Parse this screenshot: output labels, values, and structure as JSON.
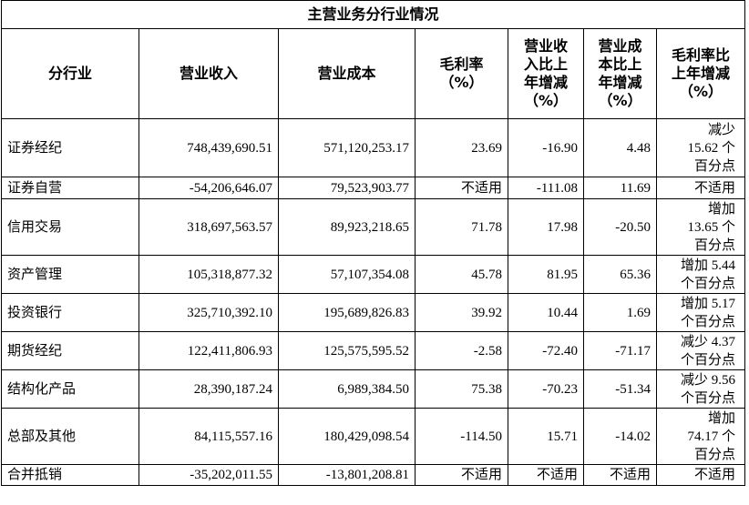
{
  "table": {
    "title": "主营业务分行业情况",
    "header": [
      "分行业",
      "营业收入",
      "营业成本",
      "毛利率（%）",
      "营业收入比上年增减（%）",
      "营业成本比上年增减（%）",
      "毛利率比上年增减（%）"
    ],
    "rows": [
      [
        "证券经纪",
        "748,439,690.51",
        "571,120,253.17",
        "23.69",
        "-16.90",
        "4.48",
        "减少 15.62 个百分点"
      ],
      [
        "证券自营",
        "-54,206,646.07",
        "79,523,903.77",
        "不适用",
        "-111.08",
        "11.69",
        "不适用"
      ],
      [
        "信用交易",
        "318,697,563.57",
        "89,923,218.65",
        "71.78",
        "17.98",
        "-20.50",
        "增加 13.65 个百分点"
      ],
      [
        "资产管理",
        "105,318,877.32",
        "57,107,354.08",
        "45.78",
        "81.95",
        "65.36",
        "增加 5.44 个百分点"
      ],
      [
        "投资银行",
        "325,710,392.10",
        "195,689,826.83",
        "39.92",
        "10.44",
        "1.69",
        "增加 5.17 个百分点"
      ],
      [
        "期货经纪",
        "122,411,806.93",
        "125,575,595.52",
        "-2.58",
        "-72.40",
        "-71.17",
        "减少 4.37 个百分点"
      ],
      [
        "结构化产品",
        "28,390,187.24",
        "6,989,384.50",
        "75.38",
        "-70.23",
        "-51.34",
        "减少 9.56 个百分点"
      ],
      [
        "总部及其他",
        "84,115,557.16",
        "180,429,098.54",
        "-114.50",
        "15.71",
        "-14.02",
        "增加 74.17 个百分点"
      ],
      [
        "合并抵销",
        "-35,202,011.55",
        "-13,801,208.81",
        "不适用",
        "不适用",
        "不适用",
        "不适用"
      ]
    ]
  }
}
